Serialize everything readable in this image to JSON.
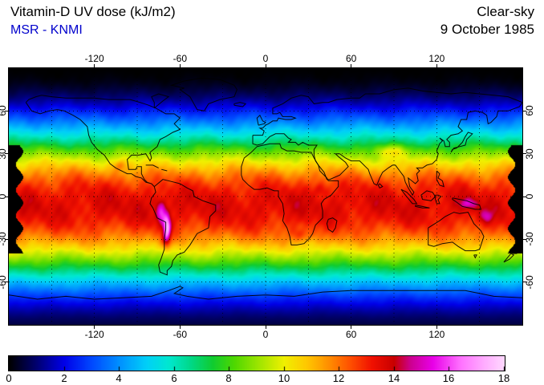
{
  "header": {
    "title": "Vitamin-D UV dose (kJ/m2)",
    "source": "MSR - KNMI",
    "source_color": "#0000cc",
    "condition": "Clear-sky",
    "date": "9 October 1985"
  },
  "chart_data": {
    "type": "heatmap",
    "title": "Vitamin-D UV dose (kJ/m2)",
    "provider": "MSR - KNMI",
    "sky_condition": "Clear-sky",
    "date": "9 October 1985",
    "units": "kJ/m2",
    "projection": "equirectangular",
    "lon_range": [
      -180,
      180
    ],
    "lat_range": [
      -90,
      90
    ],
    "lon_ticks": [
      -120,
      -60,
      0,
      60,
      120
    ],
    "lat_ticks": [
      60,
      30,
      0,
      -30,
      -60
    ],
    "grid_step_deg": 30,
    "lat_profile": {
      "lat": [
        90,
        80,
        70,
        60,
        50,
        40,
        30,
        20,
        10,
        0,
        -10,
        -20,
        -30,
        -40,
        -50,
        -60,
        -70,
        -80,
        -90
      ],
      "dose": [
        0.0,
        0.2,
        1.0,
        2.4,
        4.2,
        6.4,
        8.8,
        11.0,
        12.6,
        13.4,
        13.5,
        12.9,
        11.6,
        9.6,
        7.2,
        4.8,
        2.8,
        1.4,
        0.6
      ]
    },
    "anomalies": [
      {
        "name": "peru-andes",
        "lon": -73,
        "lat": -12,
        "sx": 2.5,
        "sy": 6,
        "amp": 2.6
      },
      {
        "name": "altiplano",
        "lon": -69,
        "lat": -22,
        "sx": 1.8,
        "sy": 6,
        "amp": 4.2
      },
      {
        "name": "south-andes",
        "lon": -70,
        "lat": -30,
        "sx": 2,
        "sy": 4,
        "amp": 1.6
      },
      {
        "name": "tibet",
        "lon": 88,
        "lat": 32,
        "sx": 7,
        "sy": 3,
        "amp": 1.6
      },
      {
        "name": "new-guinea",
        "lon": 142,
        "lat": -5,
        "sx": 4,
        "sy": 2.5,
        "amp": 1.6
      },
      {
        "name": "coral-sea",
        "lon": 155,
        "lat": -14,
        "sx": 3,
        "sy": 3,
        "amp": 1.3
      },
      {
        "name": "mexico-plateau",
        "lon": -102,
        "lat": 22,
        "sx": 3,
        "sy": 2.5,
        "amp": 1.2
      },
      {
        "name": "southern-africa",
        "lon": 25,
        "lat": -27,
        "sx": 5,
        "sy": 3,
        "amp": 0.9
      },
      {
        "name": "east-africa",
        "lon": 38,
        "lat": 5,
        "sx": 3,
        "sy": 3,
        "amp": 0.8
      }
    ],
    "no_data_gap": {
      "lon_abs_min": 172.5,
      "lat_min": -40,
      "lat_max": 36
    },
    "colorbar": {
      "min": 0,
      "max": 18,
      "tick_labels": [
        0,
        2,
        4,
        6,
        8,
        10,
        12,
        14,
        16,
        18
      ],
      "stops": [
        [
          0,
          "#000000"
        ],
        [
          1,
          "#000070"
        ],
        [
          2,
          "#0000e8"
        ],
        [
          3,
          "#0048ff"
        ],
        [
          4,
          "#0090ff"
        ],
        [
          5,
          "#00d0f8"
        ],
        [
          5.8,
          "#00e8d0"
        ],
        [
          6.6,
          "#00d888"
        ],
        [
          7.4,
          "#10cc30"
        ],
        [
          8.2,
          "#50d800"
        ],
        [
          9,
          "#98e400"
        ],
        [
          10,
          "#f0f000"
        ],
        [
          10.8,
          "#ffc800"
        ],
        [
          11.6,
          "#ff9000"
        ],
        [
          12.4,
          "#ff5000"
        ],
        [
          13.2,
          "#f01000"
        ],
        [
          14,
          "#c80000"
        ],
        [
          14.6,
          "#cc0090"
        ],
        [
          15.4,
          "#e800e8"
        ],
        [
          16.4,
          "#ff70ff"
        ],
        [
          17.2,
          "#ffa8ff"
        ],
        [
          18,
          "#ffd8ff"
        ]
      ]
    }
  }
}
